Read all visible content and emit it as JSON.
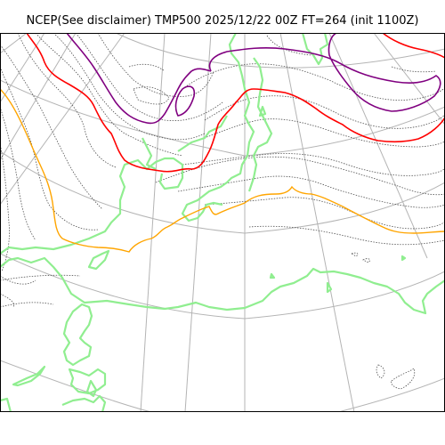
{
  "title": "NCEP(See disclaimer) TMP500 2025/12/22 00Z FT=264 (init 1100Z)",
  "colors": {
    "background": "#ffffff",
    "frame": "#000000",
    "graticule": "#b4b4b4",
    "coastline": "#90ee90",
    "temperature_contour": "#505050",
    "isotherm_purple": "#800080",
    "isotherm_red": "#ff0000",
    "isotherm_orange": "#ffa500"
  }
}
